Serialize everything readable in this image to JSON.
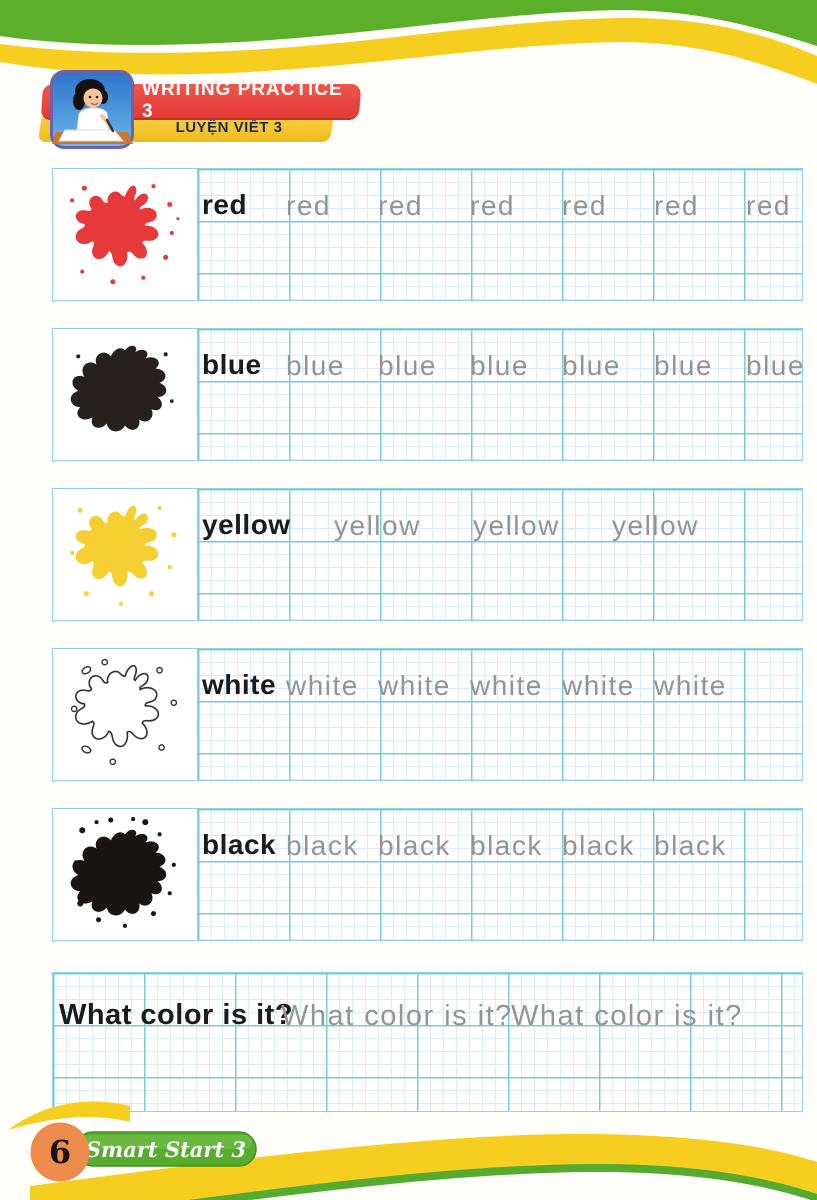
{
  "header": {
    "title": "WRITING PRACTICE 3",
    "subtitle": "LUYỆN VIẾT 3",
    "icon": "girl-writing-icon"
  },
  "rows": [
    {
      "word": "red",
      "splat": "red-paint-splat-icon",
      "splat_color": "#e6393b",
      "traces": [
        "red",
        "red",
        "red",
        "red",
        "red",
        "red"
      ]
    },
    {
      "word": "blue",
      "splat": "blue-paint-splat-icon",
      "splat_color": "#26211f",
      "traces": [
        "blue",
        "blue",
        "blue",
        "blue",
        "blue",
        "blue"
      ]
    },
    {
      "word": "yellow",
      "splat": "yellow-paint-splat-icon",
      "splat_color": "#f6cf32",
      "traces": [
        "yellow",
        "yellow",
        "yellow"
      ]
    },
    {
      "word": "white",
      "splat": "white-paint-splat-icon",
      "splat_color": "#ffffff",
      "traces": [
        "white",
        "white",
        "white",
        "white",
        "white"
      ]
    },
    {
      "word": "black",
      "splat": "black-paint-splat-icon",
      "splat_color": "#191514",
      "traces": [
        "black",
        "black",
        "black",
        "black",
        "black"
      ]
    }
  ],
  "sentence": {
    "text": "What color is it?",
    "traces": [
      "What color is it?",
      "What color is it?"
    ]
  },
  "footer": {
    "page_number": "6",
    "brand": "Smart Start 3"
  },
  "palette": {
    "band_green": "#5caf2b",
    "band_yellow": "#f5ce1f",
    "ribbon_red": "#e8413a",
    "ribbon_yellow": "#f3c62c",
    "subtitle_text": "#1c2b5a",
    "grid_fine": "#d7edf6",
    "grid_major": "#79c9e3",
    "solid_text": "#1b1b1b",
    "trace_text": "#949494",
    "footer_circle": "#ee8c4d",
    "footer_pill": "#57ac2e"
  }
}
